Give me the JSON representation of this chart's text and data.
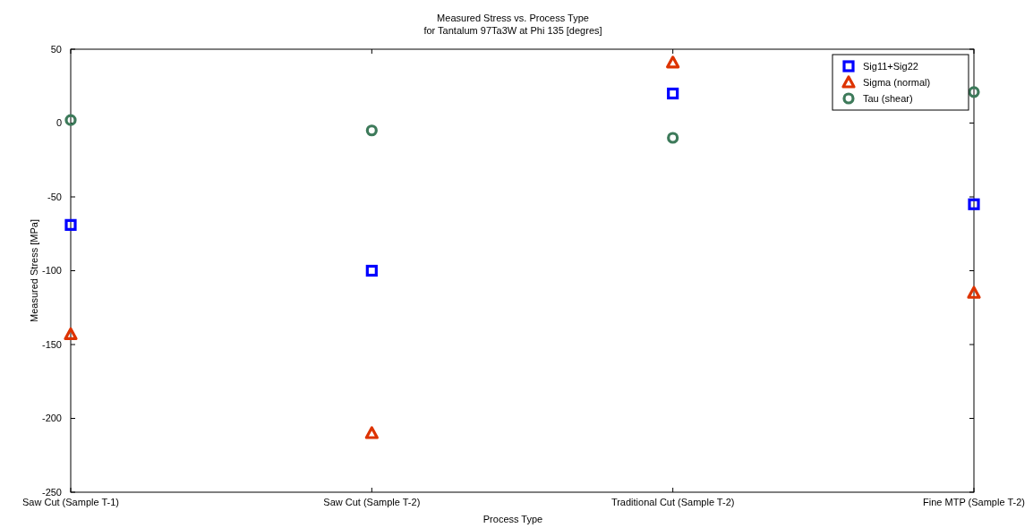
{
  "chart_data": {
    "type": "scatter",
    "title": "Measured Stress vs. Process Type",
    "subtitle": "for Tantalum 97Ta3W at Phi 135 [degres]",
    "xlabel": "Process Type",
    "ylabel": "Measured Stress [MPa]",
    "categories": [
      "Saw Cut (Sample T-1)",
      "Saw Cut (Sample T-2)",
      "Traditional Cut (Sample T-2)",
      "Fine MTP (Sample T-2)"
    ],
    "ylim": [
      -250,
      50
    ],
    "yticks": [
      -250,
      -200,
      -150,
      -100,
      -50,
      0,
      50
    ],
    "grid": false,
    "legend": "top right",
    "series": [
      {
        "name": "Sig11+Sig22",
        "color": "#0000ff",
        "marker": "square",
        "values": [
          -69,
          -100,
          20,
          -55
        ]
      },
      {
        "name": "Sigma (normal)",
        "color": "#dd3300",
        "marker": "triangle",
        "values": [
          -143,
          -210,
          41,
          -115
        ]
      },
      {
        "name": "Tau (shear)",
        "color": "#3d7a5a",
        "marker": "circle",
        "values": [
          2,
          -5,
          -10,
          21
        ]
      }
    ]
  }
}
